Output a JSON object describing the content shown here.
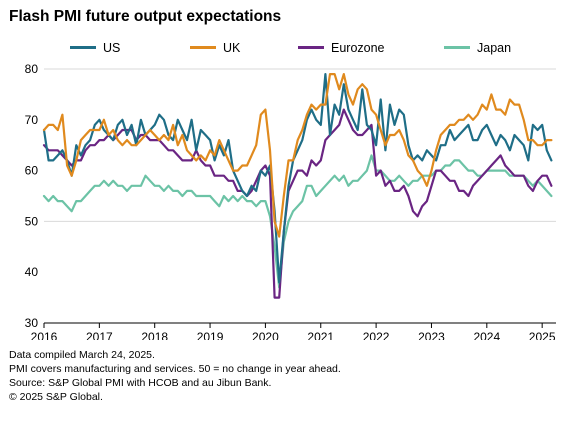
{
  "title": "Flash PMI future output expectations",
  "footnotes": [
    "Data compiled March 24, 2025.",
    "PMI covers manufacturing and services. 50 = no change in year ahead.",
    "Source: S&P Global PMI with HCOB and au Jibun Bank.",
    "© 2025 S&P Global."
  ],
  "colors": {
    "US": "#1f6e87",
    "UK": "#e08a1e",
    "Eurozone": "#6a2583",
    "Japan": "#6cc3a6",
    "grid": "#d9d9d9",
    "axis": "#000000"
  },
  "chart_data": {
    "type": "line",
    "title": "Flash PMI future output expectations",
    "xlabel": "",
    "ylabel": "",
    "ylim": [
      30,
      80
    ],
    "xlim": [
      2016.0,
      2025.25
    ],
    "yticks": [
      30,
      40,
      50,
      60,
      70,
      80
    ],
    "xticks": [
      2016,
      2017,
      2018,
      2019,
      2020,
      2021,
      2022,
      2023,
      2024,
      2025
    ],
    "xtick_labels": [
      "2016",
      "2017",
      "2018",
      "2019",
      "2020",
      "2021",
      "2022",
      "2023",
      "2024",
      "2025"
    ],
    "grid": "horizontal at 50 and 80",
    "legend": "top",
    "x": [
      2016.0,
      2016.083,
      2016.167,
      2016.25,
      2016.333,
      2016.417,
      2016.5,
      2016.583,
      2016.667,
      2016.75,
      2016.833,
      2016.917,
      2017.0,
      2017.083,
      2017.167,
      2017.25,
      2017.333,
      2017.417,
      2017.5,
      2017.583,
      2017.667,
      2017.75,
      2017.833,
      2017.917,
      2018.0,
      2018.083,
      2018.167,
      2018.25,
      2018.333,
      2018.417,
      2018.5,
      2018.583,
      2018.667,
      2018.75,
      2018.833,
      2018.917,
      2019.0,
      2019.083,
      2019.167,
      2019.25,
      2019.333,
      2019.417,
      2019.5,
      2019.583,
      2019.667,
      2019.75,
      2019.833,
      2019.917,
      2020.0,
      2020.083,
      2020.167,
      2020.25,
      2020.333,
      2020.417,
      2020.5,
      2020.583,
      2020.667,
      2020.75,
      2020.833,
      2020.917,
      2021.0,
      2021.083,
      2021.167,
      2021.25,
      2021.333,
      2021.417,
      2021.5,
      2021.583,
      2021.667,
      2021.75,
      2021.833,
      2021.917,
      2022.0,
      2022.083,
      2022.167,
      2022.25,
      2022.333,
      2022.417,
      2022.5,
      2022.583,
      2022.667,
      2022.75,
      2022.833,
      2022.917,
      2023.0,
      2023.083,
      2023.167,
      2023.25,
      2023.333,
      2023.417,
      2023.5,
      2023.583,
      2023.667,
      2023.75,
      2023.833,
      2023.917,
      2024.0,
      2024.083,
      2024.167,
      2024.25,
      2024.333,
      2024.417,
      2024.5,
      2024.583,
      2024.667,
      2024.75,
      2024.833,
      2024.917,
      2025.0,
      2025.083,
      2025.167
    ],
    "series": [
      {
        "name": "US",
        "values": [
          68,
          62,
          62,
          63,
          64,
          62,
          59,
          65,
          63,
          65,
          66,
          69,
          70,
          68,
          67,
          66,
          69,
          70,
          67,
          69,
          65,
          70,
          67,
          68,
          69,
          71,
          70,
          67,
          66,
          70,
          68,
          66,
          70,
          64,
          68,
          67,
          66,
          62,
          65,
          63,
          66,
          60,
          58,
          56,
          55,
          57,
          56,
          60,
          59,
          61,
          52,
          38,
          48,
          57,
          62,
          64,
          66,
          70,
          72,
          70,
          69,
          79,
          67,
          73,
          71,
          77,
          72,
          70,
          68,
          76,
          69,
          68,
          65,
          74,
          64,
          73,
          69,
          72,
          71,
          65,
          62,
          63,
          62,
          64,
          63,
          62,
          65,
          65,
          68,
          66,
          67,
          68,
          69,
          66,
          66,
          68,
          69,
          67,
          65,
          67,
          66,
          64,
          67,
          66,
          65,
          62,
          69,
          68,
          69,
          64,
          62
        ]
      },
      {
        "name": "UK",
        "values": [
          68,
          69,
          69,
          68,
          71,
          61,
          59,
          62,
          66,
          67,
          68,
          68,
          68,
          70,
          67,
          68,
          66,
          65,
          66,
          65,
          65,
          66,
          67,
          68,
          67,
          66,
          67,
          66,
          69,
          65,
          67,
          64,
          63,
          62,
          63,
          62,
          64,
          63,
          66,
          64,
          62,
          60,
          60,
          61,
          61,
          63,
          65,
          71,
          72,
          64,
          50,
          47,
          55,
          62,
          62,
          66,
          68,
          71,
          73,
          72,
          73,
          73,
          79,
          79,
          76,
          79,
          75,
          73,
          76,
          77,
          76,
          72,
          71,
          68,
          65,
          67,
          67,
          68,
          66,
          63,
          62,
          60,
          59,
          57,
          60,
          64,
          67,
          68,
          69,
          69,
          70,
          70,
          71,
          70,
          71,
          73,
          72,
          75,
          72,
          72,
          71,
          74,
          73,
          73,
          70,
          66,
          66,
          65,
          65,
          66,
          66
        ]
      },
      {
        "name": "Eurozone",
        "values": [
          65,
          64,
          64,
          64,
          63,
          62,
          61,
          62,
          62,
          64,
          65,
          65,
          66,
          66,
          67,
          66,
          67,
          68,
          68,
          68,
          66,
          67,
          67,
          66,
          66,
          66,
          65,
          64,
          64,
          63,
          62,
          62,
          62,
          64,
          62,
          61,
          61,
          59,
          59,
          59,
          58,
          58,
          56,
          56,
          55,
          56,
          58,
          60,
          61,
          59,
          35,
          35,
          48,
          56,
          58,
          60,
          60,
          59,
          62,
          61,
          62,
          66,
          67,
          68,
          69,
          72,
          70,
          68,
          67,
          67,
          68,
          69,
          59,
          60,
          57,
          58,
          56,
          56,
          57,
          55,
          52,
          51,
          53,
          54,
          57,
          60,
          60,
          59,
          58,
          58,
          56,
          56,
          55,
          57,
          58,
          59,
          60,
          61,
          62,
          63,
          61,
          60,
          59,
          59,
          59,
          57,
          56,
          58,
          59,
          59,
          57
        ]
      },
      {
        "name": "Japan",
        "values": [
          55,
          54,
          55,
          54,
          54,
          53,
          52,
          54,
          54,
          55,
          56,
          57,
          57,
          58,
          57,
          58,
          57,
          57,
          56,
          57,
          57,
          57,
          59,
          58,
          57,
          57,
          56,
          57,
          56,
          56,
          55,
          56,
          56,
          55,
          55,
          55,
          55,
          54,
          53,
          55,
          54,
          55,
          54,
          55,
          54,
          54,
          53,
          54,
          54,
          51,
          45,
          37,
          46,
          50,
          52,
          53,
          54,
          57,
          57,
          55,
          56,
          57,
          58,
          59,
          58,
          59,
          57,
          58,
          58,
          59,
          60,
          63,
          60,
          60,
          59,
          58,
          58,
          59,
          58,
          57,
          58,
          58,
          59,
          59,
          59,
          60,
          60,
          61,
          61,
          62,
          62,
          61,
          60,
          60,
          59,
          59,
          60,
          60,
          60,
          60,
          60,
          59,
          59,
          59,
          59,
          58,
          57,
          58,
          57,
          56,
          55
        ]
      }
    ]
  }
}
